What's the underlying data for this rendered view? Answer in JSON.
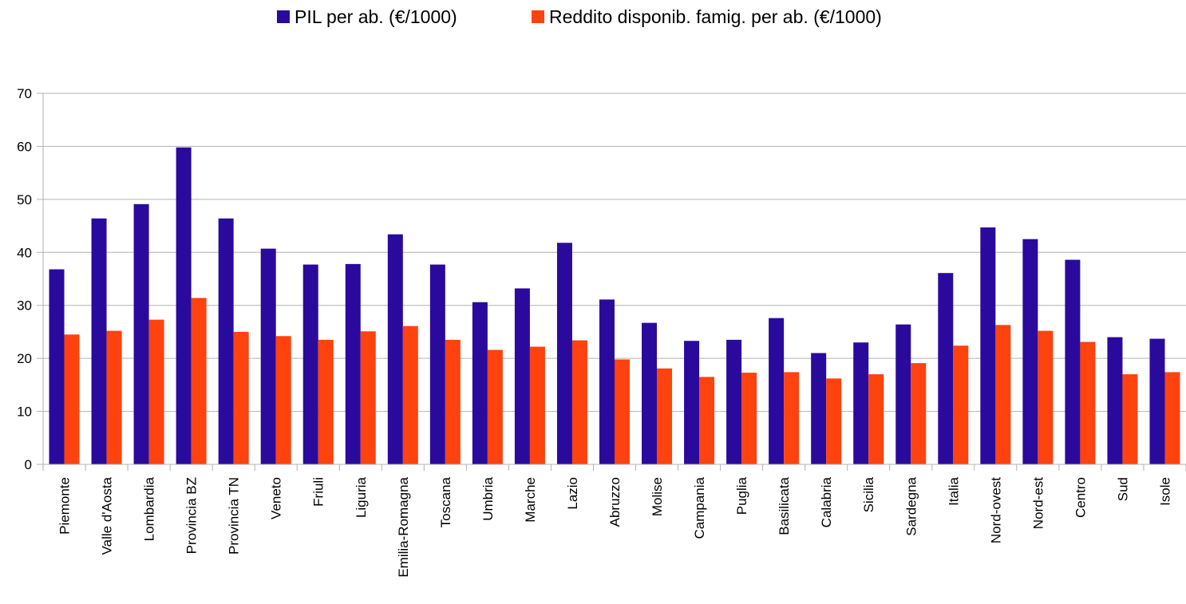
{
  "chart_data": {
    "type": "bar",
    "title": "",
    "xlabel": "",
    "ylabel": "",
    "ylim": [
      0,
      70
    ],
    "yticks": [
      0,
      10,
      20,
      30,
      40,
      50,
      60,
      70
    ],
    "grid": true,
    "legend_position": "top-center",
    "categories": [
      "Piemonte",
      "Valle d'Aosta",
      "Lombardia",
      "Provincia BZ",
      "Provincia TN",
      "Veneto",
      "Friuli",
      "Liguria",
      "Emilia-Romagna",
      "Toscana",
      "Umbria",
      "Marche",
      "Lazio",
      "Abruzzo",
      "Molise",
      "Campania",
      "Puglia",
      "Basilicata",
      "Calabria",
      "Sicilia",
      "Sardegna",
      "Italia",
      "Nord-ovest",
      "Nord-est",
      "Centro",
      "Sud",
      "Isole"
    ],
    "series": [
      {
        "name": "PIL per ab. (€/1000)",
        "color": "#2a0a9c",
        "values": [
          36.8,
          46.4,
          49.1,
          59.8,
          46.4,
          40.7,
          37.7,
          37.8,
          43.4,
          37.7,
          30.6,
          33.2,
          41.8,
          31.1,
          26.7,
          23.3,
          23.5,
          27.6,
          21.0,
          23.0,
          26.4,
          36.1,
          44.7,
          42.5,
          38.6,
          24.0,
          23.7
        ]
      },
      {
        "name": "Reddito disponib. famig. per ab. (€/1000)",
        "color": "#ff420e",
        "values": [
          24.5,
          25.2,
          27.3,
          31.4,
          25.0,
          24.2,
          23.5,
          25.1,
          26.1,
          23.5,
          21.6,
          22.2,
          23.4,
          19.8,
          18.1,
          16.5,
          17.3,
          17.4,
          16.2,
          17.0,
          19.1,
          22.4,
          26.3,
          25.2,
          23.1,
          17.0,
          17.4
        ]
      }
    ]
  }
}
